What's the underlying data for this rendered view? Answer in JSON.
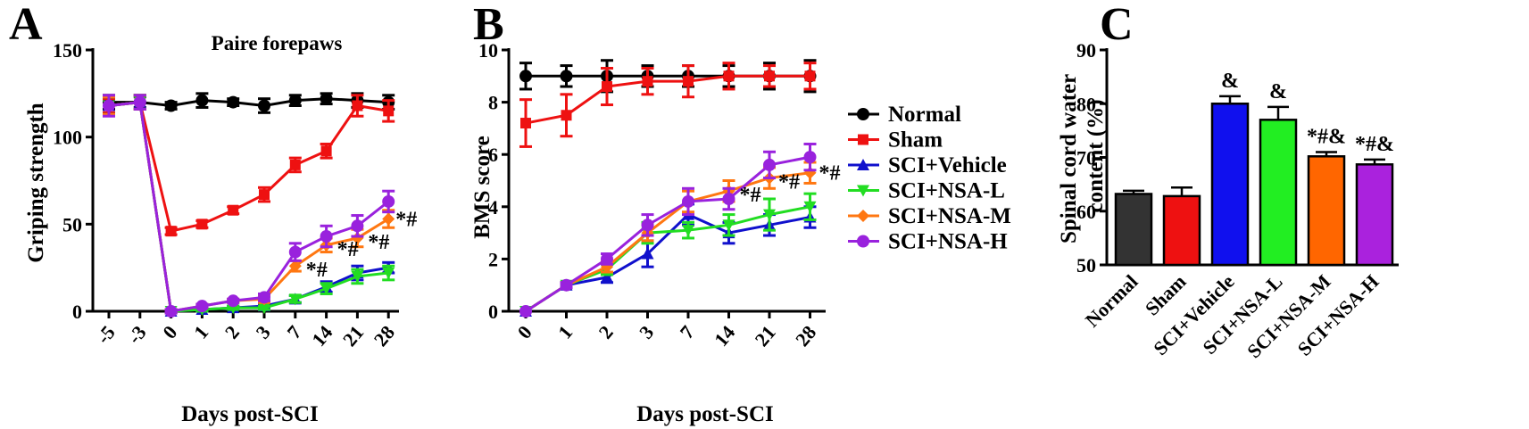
{
  "chart_data": [
    {
      "panel": "A",
      "type": "line",
      "title": "Paire forepaws",
      "xlabel": "Days post-SCI",
      "ylabel": "Griping strength",
      "categories": [
        "-5",
        "-3",
        "0",
        "1",
        "2",
        "3",
        "7",
        "14",
        "21",
        "28"
      ],
      "ylim": [
        0,
        150
      ],
      "yticks": [
        0,
        50,
        100,
        150
      ],
      "series": [
        {
          "name": "Normal",
          "color": "#000000",
          "marker": "circle",
          "values": [
            120,
            120,
            118,
            121,
            120,
            118,
            121,
            122,
            121,
            120
          ],
          "errors": [
            4,
            3,
            2,
            4,
            2,
            4,
            3,
            3,
            4,
            4
          ]
        },
        {
          "name": "Sham",
          "color": "#ee1111",
          "marker": "square",
          "values": [
            118,
            120,
            46,
            50,
            58,
            67,
            84,
            92,
            118,
            115
          ],
          "errors": [
            4,
            4,
            2,
            2,
            2,
            4,
            4,
            4,
            6,
            6
          ]
        },
        {
          "name": "SCI+Vehicle",
          "color": "#1010cc",
          "marker": "triangle-up",
          "values": [
            118,
            120,
            0,
            1,
            2,
            3,
            7,
            14,
            22,
            25
          ],
          "errors": [
            5,
            4,
            1,
            1,
            1,
            1,
            2,
            3,
            4,
            3
          ]
        },
        {
          "name": "SCI+NSA-L",
          "color": "#22dd22",
          "marker": "triangle-down",
          "values": [
            118,
            120,
            0,
            1,
            2,
            2,
            7,
            13,
            20,
            22
          ],
          "errors": [
            5,
            4,
            1,
            1,
            1,
            1,
            2,
            3,
            4,
            4
          ]
        },
        {
          "name": "SCI+NSA-M",
          "color": "#ff7711",
          "marker": "diamond",
          "values": [
            118,
            120,
            0,
            3,
            6,
            7,
            26,
            38,
            42,
            53
          ],
          "errors": [
            5,
            4,
            1,
            1,
            1,
            2,
            3,
            4,
            5,
            5
          ]
        },
        {
          "name": "SCI+NSA-H",
          "color": "#9922dd",
          "marker": "circle",
          "values": [
            118,
            120,
            0,
            3,
            6,
            8,
            34,
            43,
            49,
            63
          ],
          "errors": [
            6,
            4,
            1,
            1,
            1,
            2,
            5,
            6,
            6,
            6
          ]
        }
      ],
      "annotations": [
        "*#",
        "*#",
        "*#",
        "*#"
      ]
    },
    {
      "panel": "B",
      "type": "line",
      "xlabel": "Days post-SCI",
      "ylabel": "BMS score",
      "categories": [
        "0",
        "1",
        "2",
        "3",
        "7",
        "14",
        "21",
        "28"
      ],
      "ylim": [
        0,
        10
      ],
      "yticks": [
        0,
        2,
        4,
        6,
        8,
        10
      ],
      "series": [
        {
          "name": "Normal",
          "color": "#000000",
          "marker": "circle",
          "values": [
            9,
            9,
            9,
            9,
            9,
            9,
            9,
            9
          ],
          "errors": [
            0.5,
            0.4,
            0.6,
            0.4,
            0.4,
            0.4,
            0.5,
            0.6
          ]
        },
        {
          "name": "Sham",
          "color": "#ee1111",
          "marker": "square",
          "values": [
            7.2,
            7.5,
            8.6,
            8.8,
            8.8,
            9,
            9,
            9
          ],
          "errors": [
            0.9,
            0.8,
            0.7,
            0.5,
            0.6,
            0.5,
            0.4,
            0.5
          ]
        },
        {
          "name": "SCI+Vehicle",
          "color": "#1010cc",
          "marker": "triangle-up",
          "values": [
            0,
            1,
            1.3,
            2.2,
            3.7,
            3.0,
            3.3,
            3.6
          ],
          "errors": [
            0,
            0.1,
            0.2,
            0.5,
            0.4,
            0.4,
            0.4,
            0.4
          ]
        },
        {
          "name": "SCI+NSA-L",
          "color": "#22dd22",
          "marker": "triangle-down",
          "values": [
            0,
            1,
            1.6,
            3.0,
            3.1,
            3.3,
            3.7,
            4.0
          ],
          "errors": [
            0,
            0.1,
            0.2,
            0.4,
            0.3,
            0.4,
            0.6,
            0.5
          ]
        },
        {
          "name": "SCI+NSA-M",
          "color": "#ff7711",
          "marker": "diamond",
          "values": [
            0,
            1,
            1.7,
            3.0,
            4.2,
            4.6,
            5.1,
            5.3
          ],
          "errors": [
            0,
            0.1,
            0.2,
            0.3,
            0.4,
            0.4,
            0.4,
            0.4
          ]
        },
        {
          "name": "SCI+NSA-H",
          "color": "#9922dd",
          "marker": "circle",
          "values": [
            0,
            1,
            2.0,
            3.3,
            4.2,
            4.3,
            5.6,
            5.9
          ],
          "errors": [
            0,
            0.1,
            0.2,
            0.4,
            0.5,
            0.4,
            0.5,
            0.5
          ]
        }
      ],
      "annotations": [
        "*#",
        "*#",
        "*#"
      ]
    },
    {
      "panel": "C",
      "type": "bar",
      "ylabel": "Spinal cord water content (%)",
      "categories": [
        "Normal",
        "Sham",
        "SCI+Vehicle",
        "SCI+NSA-L",
        "SCI+NSA-M",
        "SCI+NSA-H"
      ],
      "values": [
        63.2,
        62.8,
        80.0,
        77.0,
        70.2,
        68.7
      ],
      "errors": [
        0.6,
        1.6,
        1.4,
        2.4,
        0.8,
        0.9
      ],
      "colors": [
        "#333333",
        "#ee1111",
        "#1010ee",
        "#22ee22",
        "#ff6600",
        "#aa22dd"
      ],
      "labels": [
        "",
        "",
        "&",
        "&",
        "*#&",
        "*#&"
      ],
      "ylim": [
        50,
        90
      ],
      "yticks": [
        50,
        60,
        70,
        80,
        90
      ]
    }
  ],
  "panels": {
    "a": "A",
    "b": "B",
    "c": "C"
  },
  "legend": [
    "Normal",
    "Sham",
    "SCI+Vehicle",
    "SCI+NSA-L",
    "SCI+NSA-M",
    "SCI+NSA-H"
  ]
}
